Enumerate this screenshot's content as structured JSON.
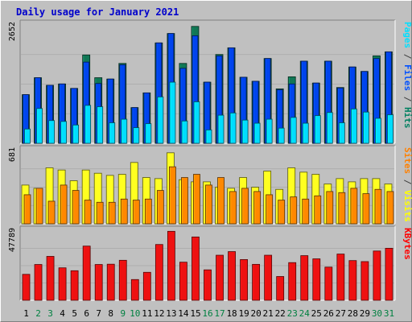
{
  "chart_data": {
    "type": "bar",
    "title": "Daily usage for January 2021",
    "categories": [
      "1",
      "2",
      "3",
      "4",
      "5",
      "6",
      "7",
      "8",
      "9",
      "10",
      "11",
      "12",
      "13",
      "14",
      "15",
      "16",
      "17",
      "18",
      "19",
      "20",
      "21",
      "22",
      "23",
      "24",
      "25",
      "26",
      "27",
      "28",
      "29",
      "30",
      "31"
    ],
    "weekend_days": [
      "2",
      "3",
      "9",
      "10",
      "16",
      "17",
      "23",
      "24",
      "30",
      "31"
    ],
    "panels": [
      {
        "name": "hits-files-pages",
        "ymax": 2652,
        "ymax_label": "2652",
        "legend": [
          {
            "text": "Pages",
            "color": "#00e0ff"
          },
          {
            "text": " / ",
            "color": "#404040"
          },
          {
            "text": "Files",
            "color": "#0050ff"
          },
          {
            "text": " / ",
            "color": "#404040"
          },
          {
            "text": "Hits",
            "color": "#008060"
          }
        ],
        "series": [
          {
            "name": "Hits",
            "color": "#117755",
            "values": [
              1090,
              1470,
              1300,
              1330,
              1230,
              1980,
              1470,
              1440,
              1790,
              800,
              1130,
              2250,
              2460,
              1790,
              2620,
              1370,
              1990,
              2140,
              1480,
              1390,
              1900,
              1220,
              1490,
              1840,
              1350,
              1840,
              1250,
              1710,
              1610,
              1960,
              2050
            ]
          },
          {
            "name": "Files",
            "color": "#0044ee",
            "values": [
              1090,
              1470,
              1300,
              1330,
              1230,
              1820,
              1340,
              1440,
              1760,
              800,
              1130,
              2250,
              2460,
              1680,
              2410,
              1370,
              1960,
              2140,
              1480,
              1390,
              1900,
              1200,
              1330,
              1840,
              1350,
              1840,
              1240,
              1710,
              1610,
              1900,
              2050
            ]
          },
          {
            "name": "Pages",
            "color": "#00ddff",
            "values": [
              320,
              780,
              510,
              490,
              410,
              850,
              820,
              460,
              540,
              350,
              440,
              1040,
              1370,
              500,
              930,
              300,
              630,
              680,
              520,
              450,
              540,
              340,
              580,
              450,
              620,
              690,
              460,
              770,
              700,
              560,
              640
            ]
          }
        ]
      },
      {
        "name": "visits-sites",
        "ymax": 681,
        "ymax_label": "681",
        "legend": [
          {
            "text": "Sites",
            "color": "#ff8000"
          },
          {
            "text": " / ",
            "color": "#404040"
          },
          {
            "text": "Visits",
            "color": "#ffff00"
          }
        ],
        "series": [
          {
            "name": "Visits",
            "color": "#ffff20",
            "values": [
              360,
              330,
              520,
              500,
              400,
              500,
              470,
              450,
              460,
              570,
              430,
              420,
              660,
              410,
              390,
              390,
              340,
              330,
              430,
              340,
              490,
              320,
              520,
              480,
              460,
              370,
              420,
              390,
              420,
              420,
              370
            ]
          },
          {
            "name": "Sites",
            "color": "#ff8800",
            "values": [
              270,
              330,
              210,
              360,
              310,
              220,
              200,
              200,
              230,
              220,
              230,
              310,
              530,
              430,
              460,
              360,
              430,
              300,
              330,
              300,
              270,
              220,
              250,
              230,
              260,
              300,
              290,
              330,
              280,
              320,
              300
            ]
          }
        ]
      },
      {
        "name": "kbytes",
        "ymax": 47789,
        "ymax_label": "47789",
        "legend": [
          {
            "text": "KBytes",
            "color": "#ff0000"
          }
        ],
        "series": [
          {
            "name": "KBytes",
            "color": "#ee1111",
            "values": [
              17900,
              24700,
              30300,
              22400,
              20400,
              37400,
              24700,
              24900,
              27600,
              14300,
              19300,
              38500,
              47600,
              26300,
              43700,
              21000,
              31100,
              33600,
              28100,
              24800,
              31100,
              16400,
              26000,
              30800,
              28600,
              22900,
              31900,
              27400,
              26700,
              34000,
              35900
            ]
          }
        ]
      }
    ]
  }
}
